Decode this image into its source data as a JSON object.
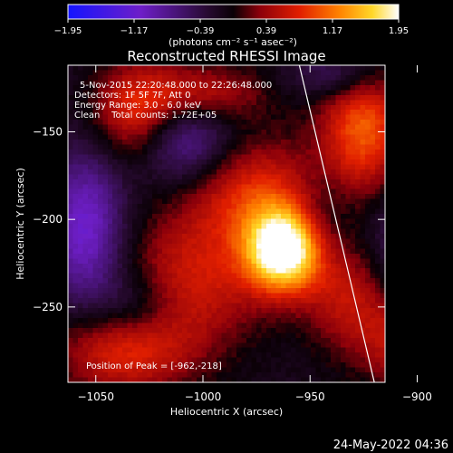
{
  "chart_data": {
    "type": "heatmap",
    "title": "Reconstructed RHESSI Image",
    "xlabel": "Heliocentric X (arcsec)",
    "ylabel": "Heliocentric Y (arcsec)",
    "xlim": [
      -1063,
      -915
    ],
    "ylim": [
      -293,
      -112
    ],
    "xticks": [
      -1050,
      -1000,
      -950,
      -900
    ],
    "yticks": [
      -150,
      -200,
      -250
    ],
    "colorbar": {
      "range": [
        -1.95,
        1.95
      ],
      "ticks": [
        -1.95,
        -1.17,
        -0.39,
        0.39,
        1.17,
        1.95
      ],
      "tick_labels": [
        "−1.95",
        "−1.17",
        "−0.39",
        "0.39",
        "1.17",
        "1.95"
      ],
      "units_label": "(photons cm⁻² s⁻¹ asec⁻²)"
    },
    "annotations": [
      "5-Nov-2015 22:20:48.000 to 22:26:48.000",
      "Detectors: 1F 5F 7F, Att 0",
      "Energy Range: 3.0 - 6.0 keV",
      "Clean    Total counts: 1.72E+05"
    ],
    "peak": {
      "x": -962,
      "y": -218,
      "label": "Position of Peak = [-962,-218]"
    },
    "limb_line": {
      "x1": -955,
      "y1": -112,
      "x2": -920,
      "y2": -293
    },
    "sources": [
      {
        "x": -962,
        "y": -218,
        "amp": 2.3,
        "sx": 13,
        "sy": 17
      },
      {
        "x": -975,
        "y": -185,
        "amp": 0.9,
        "sx": 22,
        "sy": 22
      },
      {
        "x": -1005,
        "y": -235,
        "amp": 0.8,
        "sx": 22,
        "sy": 28
      },
      {
        "x": -1038,
        "y": -275,
        "amp": 0.9,
        "sx": 22,
        "sy": 18
      },
      {
        "x": -1030,
        "y": -140,
        "amp": 1.0,
        "sx": 15,
        "sy": 20
      },
      {
        "x": -1000,
        "y": -128,
        "amp": 0.7,
        "sx": 20,
        "sy": 12
      },
      {
        "x": -925,
        "y": -148,
        "amp": 1.2,
        "sx": 14,
        "sy": 26
      },
      {
        "x": -932,
        "y": -245,
        "amp": 0.7,
        "sx": 14,
        "sy": 22
      },
      {
        "x": -900,
        "y": -270,
        "amp": 1.0,
        "sx": 16,
        "sy": 18
      },
      {
        "x": -1055,
        "y": -205,
        "amp": -1.0,
        "sx": 13,
        "sy": 32
      },
      {
        "x": -1010,
        "y": -155,
        "amp": -0.9,
        "sx": 16,
        "sy": 18
      },
      {
        "x": -890,
        "y": -215,
        "amp": -1.0,
        "sx": 18,
        "sy": 28
      },
      {
        "x": -1030,
        "y": -250,
        "amp": -0.5,
        "sx": 14,
        "sy": 14
      },
      {
        "x": -935,
        "y": -118,
        "amp": -0.6,
        "sx": 15,
        "sy": 10
      },
      {
        "x": -945,
        "y": -200,
        "amp": -0.4,
        "sx": 10,
        "sy": 20
      }
    ],
    "background_level": -0.15
  },
  "footer": {
    "date": "24-May-2022 04:36"
  }
}
